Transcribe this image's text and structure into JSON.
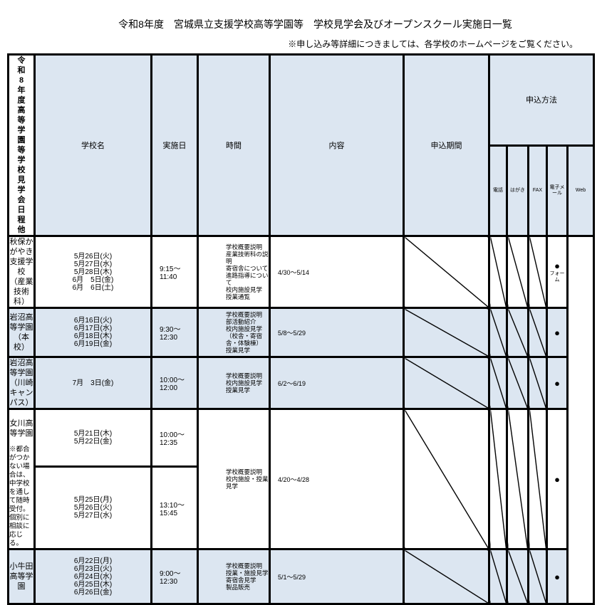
{
  "title": "令和8年度　宮城県立支援学校高等学園等　学校見学会及びオープンスクール実施日一覧",
  "note": "※申し込み等詳細につきましては、各学校のホームページをご覧ください。",
  "side_label": "令和8年度　高等学園等　学校見学会　日程他",
  "headers": {
    "school": "学校名",
    "date": "実施日",
    "time": "時間",
    "content": "内容",
    "period": "申込期間",
    "method": "申込方法",
    "phone": "電話",
    "postcard": "はがき",
    "fax": "FAX",
    "email": "電子メール",
    "web": "Web"
  },
  "rows": [
    {
      "name": "秋保かがやき支援学校",
      "sub": "（産業技術科）",
      "dates": [
        "5月26日(火)",
        "5月27日(水)",
        "5月28日(木)",
        "6月　5日(金)",
        "6月　6日(土)"
      ],
      "time": "9:15～11:40",
      "content": [
        "学校概要説明",
        "産業技術科の説明",
        "寄宿舎について",
        "進路指導について",
        "校内施設見学",
        "授業通覧"
      ],
      "period": "4/30～5/14",
      "web": "●",
      "web_note": "フォーム"
    },
    {
      "name": "岩沼高等学園",
      "sub": "（本校）",
      "dates": [
        "6月16日(火)",
        "6月17日(水)",
        "6月18日(木)",
        "6月19日(金)"
      ],
      "time": "9:30～12:30",
      "content": [
        "学校概要説明",
        "部活動紹介",
        "校内施設見学",
        "（校舎・寄宿舎・体験棟）",
        "授業見学"
      ],
      "period": "5/8～5/29",
      "web": "●"
    },
    {
      "name": "岩沼高等学園",
      "sub": "（川崎キャンパス）",
      "dates": [
        "7月　3日(金)"
      ],
      "time": "10:00～12:00",
      "content": [
        "学校概要説明",
        "校内施設見学",
        "授業見学"
      ],
      "period": "6/2～6/19",
      "web": "●"
    },
    {
      "name": "女川高等学園",
      "remark": "※都合がつかない場合は、中学校を通して随時受付。個別に相談に応じる。",
      "sessions": [
        {
          "dates": [
            "5月21日(木)",
            "5月22日(金)"
          ],
          "time": "10:00～12:35"
        },
        {
          "dates": [
            "5月25日(月)",
            "5月26日(火)",
            "5月27日(水)"
          ],
          "time": "13:10～15:45"
        }
      ],
      "content": [
        "学校概要説明",
        "校内施設・授業見学"
      ],
      "period": "4/20～4/28",
      "web": "●"
    },
    {
      "name": "小牛田高等学園",
      "dates": [
        "6月22日(月)",
        "6月23日(火)",
        "6月24日(水)",
        "6月25日(木)",
        "6月26日(金)"
      ],
      "time": "9:00～12:30",
      "content": [
        "学校概要説明",
        "授業・施設見学",
        "寄宿舎見学",
        "製品販売"
      ],
      "period": "5/1～5/29",
      "web": "●"
    }
  ]
}
